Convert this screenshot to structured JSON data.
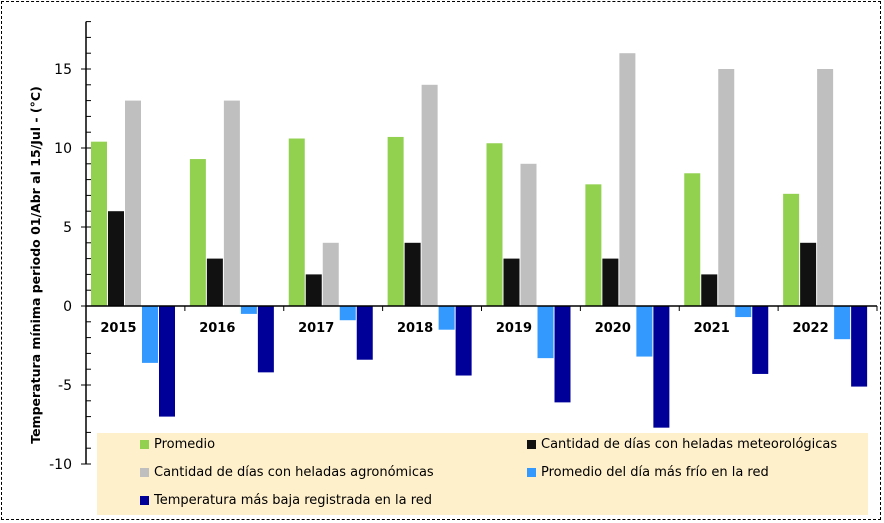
{
  "chart_data": {
    "type": "bar",
    "title": "",
    "xlabel": "",
    "ylabel": "Temperatura mínima periodo 01/Abr al 15/Jul - (°C)",
    "ylim": [
      -10,
      18
    ],
    "yticks": [
      -10,
      -5,
      0,
      5,
      10,
      15
    ],
    "ytick_labels": [
      "-10",
      "-5",
      "0",
      "5",
      "10",
      "15"
    ],
    "minor_tick_step": 1,
    "grid": false,
    "legend_position": "bottom",
    "categories": [
      "2015",
      "2016",
      "2017",
      "2018",
      "2019",
      "2020",
      "2021",
      "2022"
    ],
    "series": [
      {
        "name": "Promedio",
        "color": "#92D050",
        "values": [
          10.4,
          9.3,
          10.6,
          10.7,
          10.3,
          7.7,
          8.4,
          7.1
        ]
      },
      {
        "name": "Cantidad de días con heladas meteorológicas",
        "color": "#111111",
        "values": [
          6,
          3,
          2,
          4,
          3,
          3,
          2,
          4
        ]
      },
      {
        "name": "Cantidad de días con heladas agronómicas",
        "color": "#BFBFBF",
        "values": [
          13,
          13,
          4,
          14,
          9,
          16,
          15,
          15
        ]
      },
      {
        "name": "Promedio del día más frío en la red",
        "color": "#3399FF",
        "values": [
          -3.6,
          -0.5,
          -0.9,
          -1.5,
          -3.3,
          -3.2,
          -0.7,
          -2.1
        ]
      },
      {
        "name": "Temperatura más baja registrada en la red",
        "color": "#000099",
        "values": [
          -7.0,
          -4.2,
          -3.4,
          -4.4,
          -6.1,
          -7.7,
          -4.3,
          -5.1
        ]
      }
    ]
  }
}
